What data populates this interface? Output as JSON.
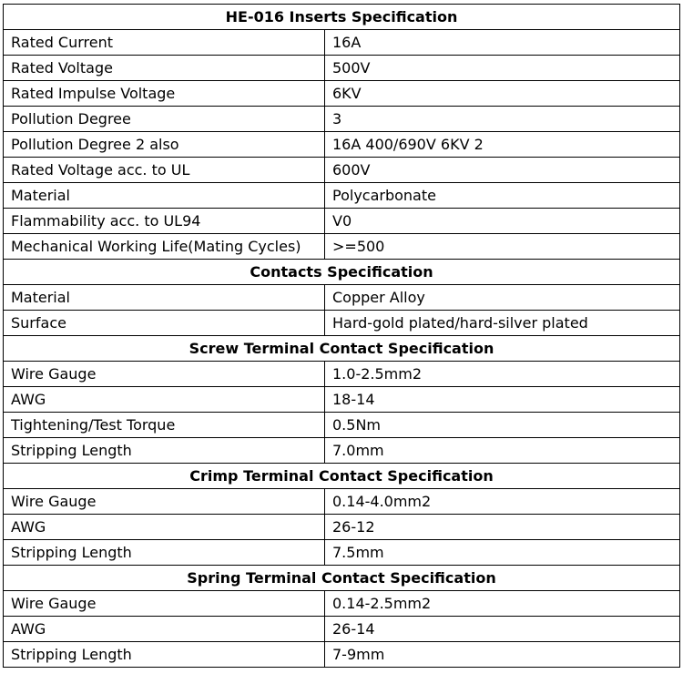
{
  "sections": [
    {
      "title": "HE-016 Inserts Specification",
      "rows": [
        [
          "Rated Current",
          "16A"
        ],
        [
          "Rated Voltage",
          "500V"
        ],
        [
          "Rated Impulse Voltage",
          "6KV"
        ],
        [
          "Pollution Degree",
          "3"
        ],
        [
          "Pollution Degree 2 also",
          "16A 400/690V 6KV 2"
        ],
        [
          "Rated Voltage acc. to UL",
          "600V"
        ],
        [
          "Material",
          "Polycarbonate"
        ],
        [
          "Flammability acc. to UL94",
          "V0"
        ],
        [
          "Mechanical Working Life(Mating Cycles)",
          ">=500"
        ]
      ]
    },
    {
      "title": "Contacts Specification",
      "rows": [
        [
          "Material",
          "Copper Alloy"
        ],
        [
          "Surface",
          "Hard-gold plated/hard-silver plated"
        ]
      ]
    },
    {
      "title": "Screw Terminal Contact Specification",
      "rows": [
        [
          "Wire Gauge",
          "1.0-2.5mm2"
        ],
        [
          "AWG",
          "18-14"
        ],
        [
          "Tightening/Test Torque",
          "0.5Nm"
        ],
        [
          "Stripping Length",
          "7.0mm"
        ]
      ]
    },
    {
      "title": "Crimp Terminal Contact Specification",
      "rows": [
        [
          "Wire Gauge",
          "0.14-4.0mm2"
        ],
        [
          "AWG",
          "26-12"
        ],
        [
          "Stripping Length",
          "7.5mm"
        ]
      ]
    },
    {
      "title": "Spring Terminal Contact Specification",
      "rows": [
        [
          "Wire Gauge",
          "0.14-2.5mm2"
        ],
        [
          "AWG",
          "26-14"
        ],
        [
          "Stripping Length",
          "7-9mm"
        ]
      ]
    }
  ]
}
